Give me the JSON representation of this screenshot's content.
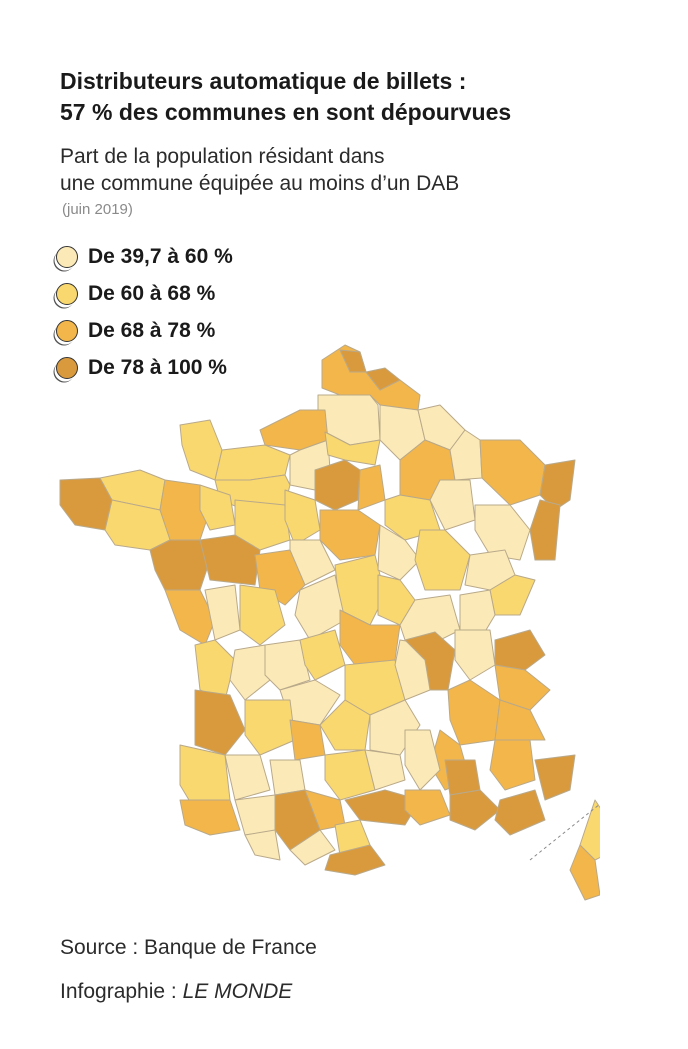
{
  "title": {
    "line1": "Distributeurs automatique de billets :",
    "line2": "57 % des communes en sont dépourvues"
  },
  "subtitle": {
    "line1": "Part de la population résidant dans",
    "line2": "une commune  équipée au moins d’un DAB"
  },
  "date": "(juin 2019)",
  "legend": [
    {
      "label": "De 39,7 à 60 %",
      "color": "#fbeab7"
    },
    {
      "label": "De 60 à 68 %",
      "color": "#f9d86f"
    },
    {
      "label": "De 68 à 78 %",
      "color": "#f3b64a"
    },
    {
      "label": "De 78 à 100 %",
      "color": "#d99a3e"
    }
  ],
  "colors": {
    "class1": "#fbeab7",
    "class2": "#f9d86f",
    "class3": "#f3b64a",
    "class4": "#d99a3e",
    "border": "#b9a98a"
  },
  "source": "Source : Banque de France",
  "credit": {
    "prefix": "Infographie : ",
    "publisher": "LE MONDE"
  }
}
